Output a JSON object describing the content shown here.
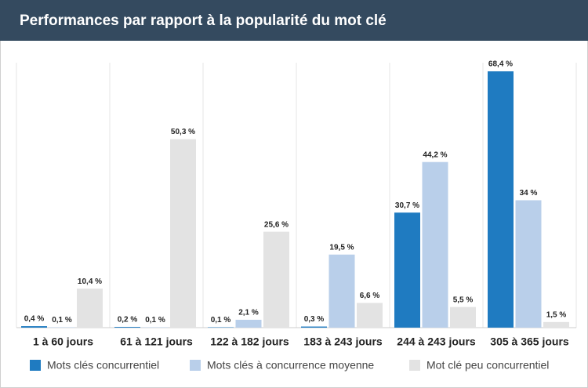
{
  "chart_data": {
    "type": "bar",
    "title": "Performances par rapport à la popularité du mot clé",
    "categories": [
      "1 à 60 jours",
      "61 à 121 jours",
      "122 à 182 jours",
      "183 à 243 jours",
      "244 à 243 jours",
      "305 à 365 jours"
    ],
    "series": [
      {
        "name": "Mots clés concurrentiel",
        "color": "#1f7bc1",
        "values": [
          0.4,
          0.2,
          0.1,
          0.3,
          30.7,
          68.4
        ],
        "value_labels": [
          "0,4 %",
          "0,2 %",
          "0,1 %",
          "0,3 %",
          "30,7 %",
          "68,4 %"
        ]
      },
      {
        "name": "Mots clés à concurrence moyenne",
        "color": "#b9cfea",
        "values": [
          0.1,
          0.1,
          2.1,
          19.5,
          44.2,
          34
        ],
        "value_labels": [
          "0,1 %",
          "0,1 %",
          "2,1 %",
          "19,5 %",
          "44,2 %",
          "34 %"
        ]
      },
      {
        "name": "Mot clé peu concurrentiel",
        "color": "#e3e3e3",
        "values": [
          10.4,
          50.3,
          25.6,
          6.6,
          5.5,
          1.5
        ],
        "value_labels": [
          "10,4 %",
          "50,3 %",
          "25,6 %",
          "6,6 %",
          "5,5 %",
          "1,5 %"
        ]
      }
    ]
  }
}
